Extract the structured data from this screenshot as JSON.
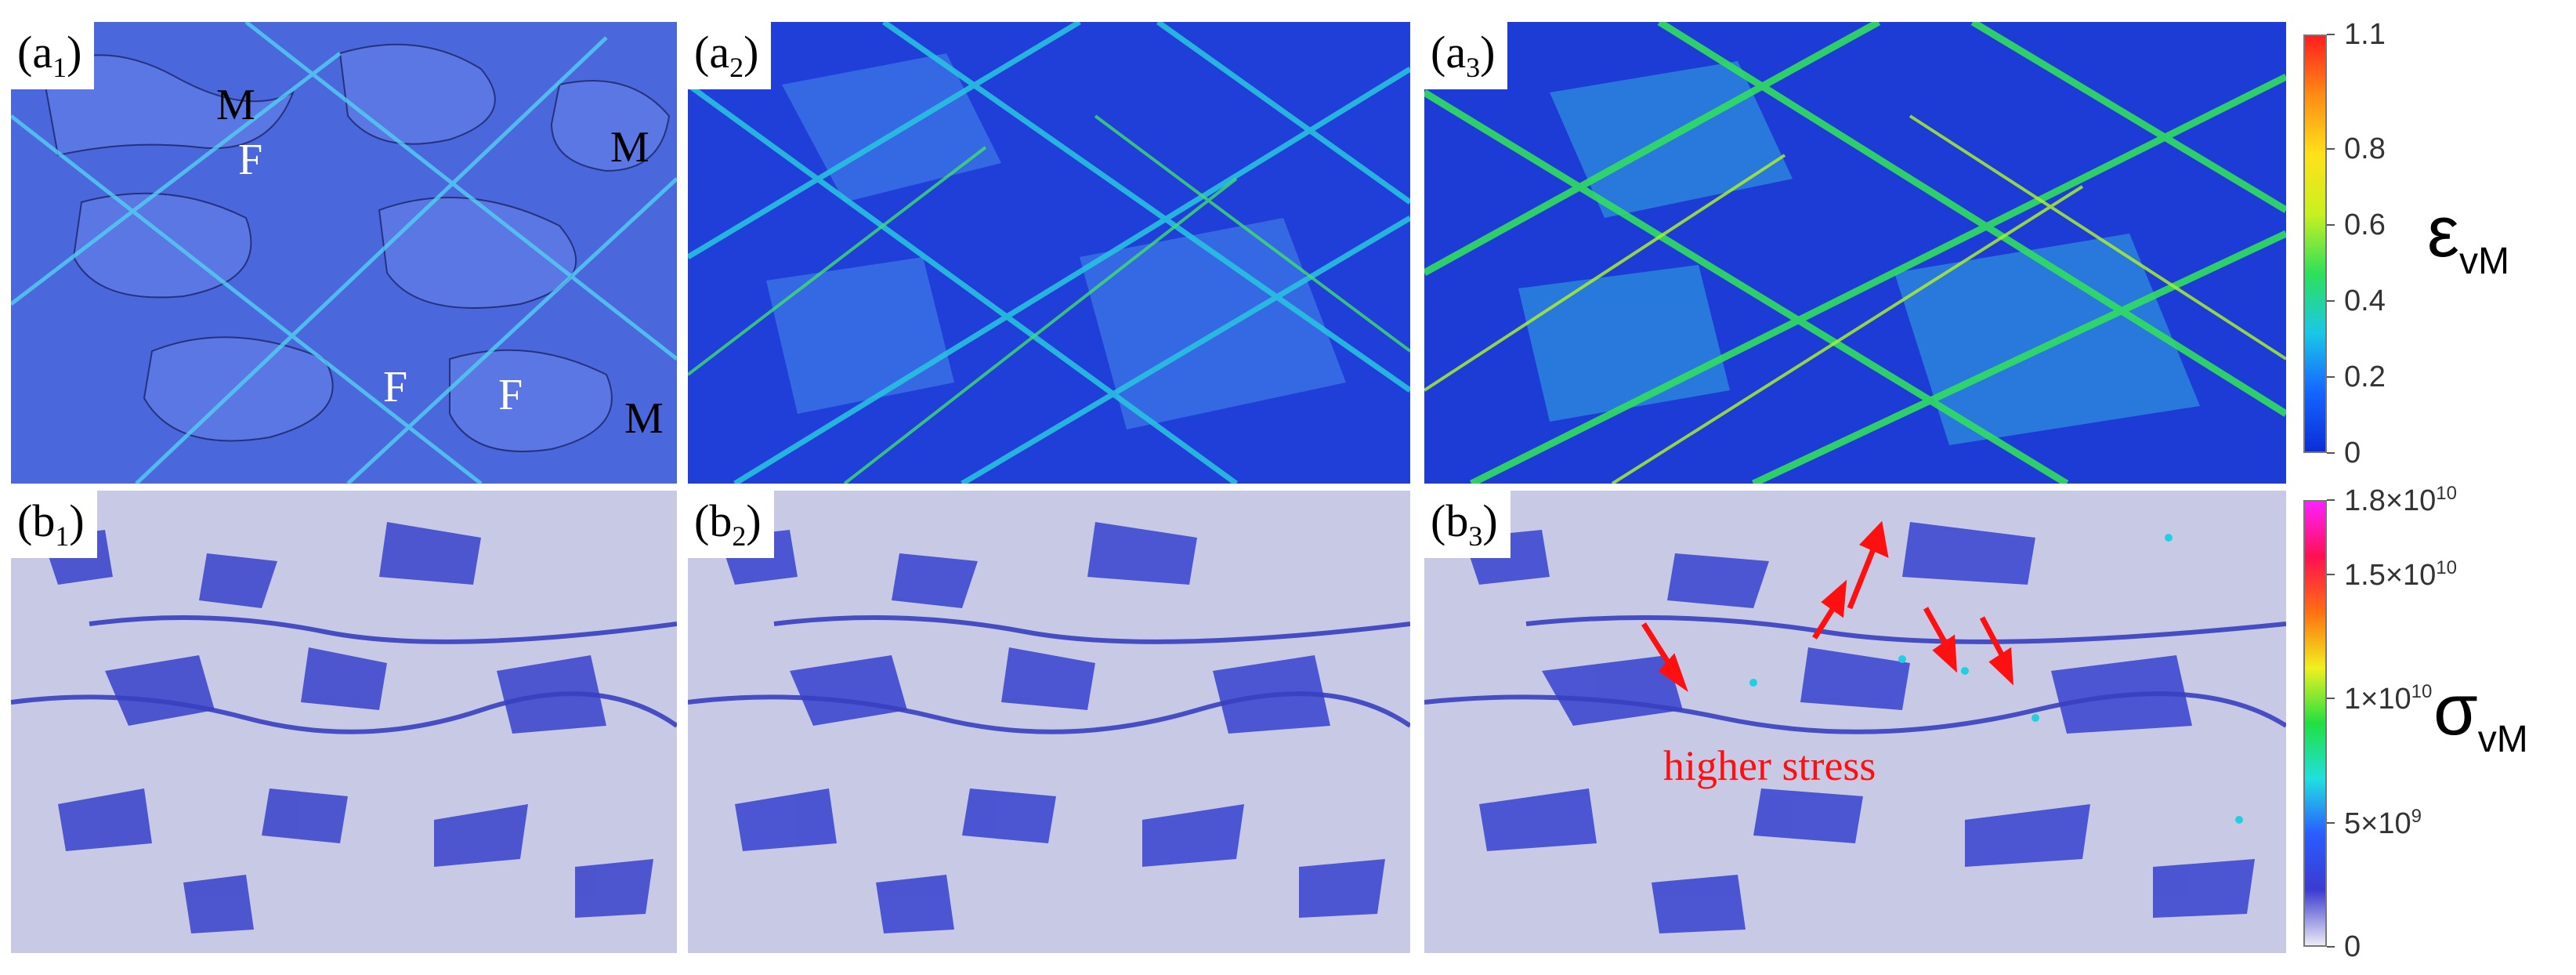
{
  "panels": {
    "a1": {
      "prefix": "(a",
      "sub": "1",
      "suffix": ")"
    },
    "a2": {
      "prefix": "(a",
      "sub": "2",
      "suffix": ")"
    },
    "a3": {
      "prefix": "(a",
      "sub": "3",
      "suffix": ")"
    },
    "b1": {
      "prefix": "(b",
      "sub": "1",
      "suffix": ")"
    },
    "b2": {
      "prefix": "(b",
      "sub": "2",
      "suffix": ")"
    },
    "b3": {
      "prefix": "(b",
      "sub": "3",
      "suffix": ")"
    }
  },
  "phase_labels": {
    "martensite": "M",
    "ferrite": "F"
  },
  "annotation": "higher stress",
  "strain_colorbar": {
    "symbol": "ε",
    "subscript": "vM",
    "ticks": [
      "1.1",
      "0.8",
      "0.6",
      "0.4",
      "0.2",
      "0"
    ],
    "tick_values": [
      1.1,
      0.8,
      0.6,
      0.4,
      0.2,
      0
    ],
    "range": [
      0,
      1.1
    ],
    "colors": [
      "#0a2ed6",
      "#1565ff",
      "#19c8e6",
      "#2ee05a",
      "#c8f020",
      "#ffe21a",
      "#ff8c14",
      "#ff1e1e"
    ]
  },
  "stress_colorbar": {
    "symbol": "σ",
    "subscript": "vM",
    "ticks": [
      "1.8×10",
      "1.5×10",
      "1×10",
      "5×10",
      "0"
    ],
    "tick_exponents": [
      "10",
      "10",
      "10",
      "9",
      ""
    ],
    "tick_values": [
      18000000000.0,
      15000000000.0,
      10000000000.0,
      5000000000.0,
      0
    ],
    "range": [
      0,
      18000000000.0
    ],
    "colors": [
      "#ecebf4",
      "#3b3bd0",
      "#2a5cff",
      "#20e0e0",
      "#20e040",
      "#f0f020",
      "#ff7010",
      "#ff1050",
      "#ff20ff"
    ]
  },
  "field_colors": {
    "strain_base": "#2748d4",
    "strain_low": "#1f3fd8",
    "strain_band": "#19b8e6",
    "strain_high": "#2ee05a",
    "ferrite_a1": "#4f6fe0",
    "boundary": "#243080",
    "stress_base": "#c9cbe6",
    "stress_island": "#3f49cf",
    "stress_hot": "#20d0e0",
    "arrow": "#ff1010"
  }
}
